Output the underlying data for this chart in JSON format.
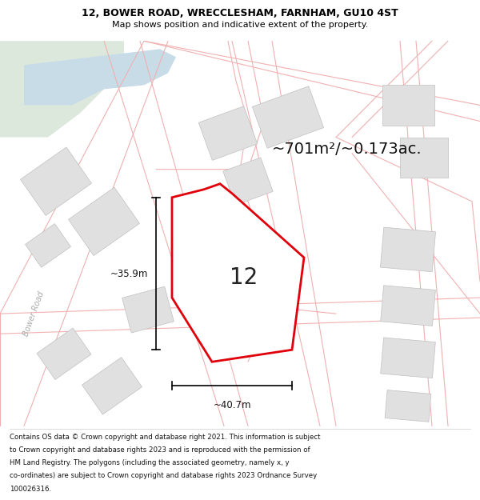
{
  "title_line1": "12, BOWER ROAD, WRECCLESHAM, FARNHAM, GU10 4ST",
  "title_line2": "Map shows position and indicative extent of the property.",
  "area_text": "~701m²/~0.173ac.",
  "property_number": "12",
  "dimension_width": "~40.7m",
  "dimension_height": "~35.9m",
  "road_label": "Bower Road",
  "footer_lines": [
    "Contains OS data © Crown copyright and database right 2021. This information is subject",
    "to Crown copyright and database rights 2023 and is reproduced with the permission of",
    "HM Land Registry. The polygons (including the associated geometry, namely x, y",
    "co-ordinates) are subject to Crown copyright and database rights 2023 Ordnance Survey",
    "100026316."
  ],
  "map_bg": "#ffffff",
  "property_fill": "#ffffff",
  "property_edge": "#e0000a",
  "road_line_color": "#f0b0b0",
  "green_color": "#dce8dc",
  "water_color": "#c8dce8",
  "building_color": "#e0e0e0",
  "building_edge": "#c0c0c0",
  "white_bg": "#ffffff",
  "dim_line_color": "#000000",
  "text_color": "#000000",
  "title_color": "#000000",
  "road_label_color": "#aaaaaa"
}
